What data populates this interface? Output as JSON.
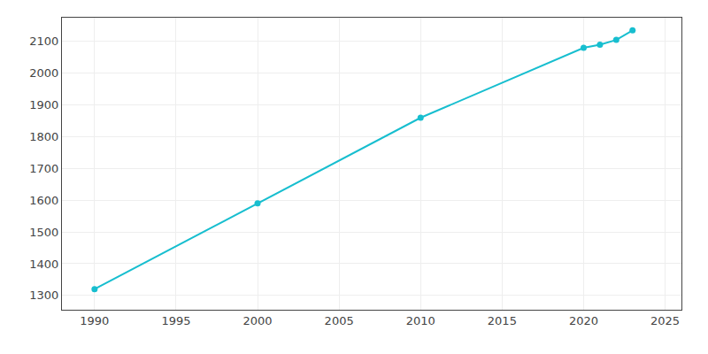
{
  "chart_data": {
    "type": "line",
    "x": [
      1990,
      2000,
      2010,
      2020,
      2021,
      2022,
      2023
    ],
    "values": [
      1320,
      1590,
      1860,
      2080,
      2090,
      2105,
      2135
    ],
    "color": "#17becf",
    "marker": "circle",
    "xlim": [
      1988,
      2026
    ],
    "ylim": [
      1255,
      2175
    ],
    "xticks": [
      1990,
      1995,
      2000,
      2005,
      2010,
      2015,
      2020,
      2025
    ],
    "yticks": [
      1300,
      1400,
      1500,
      1600,
      1700,
      1800,
      1900,
      2000,
      2100
    ],
    "grid": true
  }
}
